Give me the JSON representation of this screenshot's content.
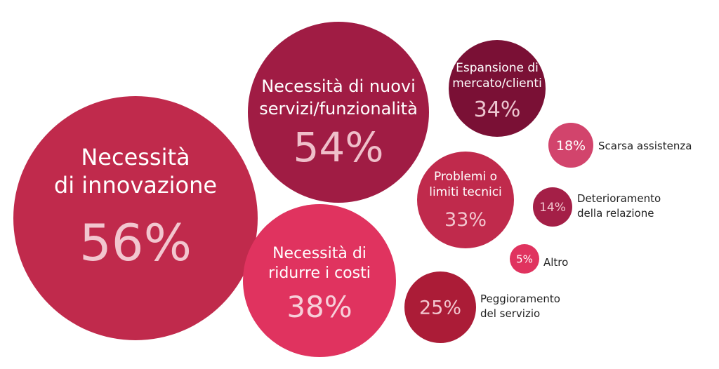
{
  "chart_data": {
    "type": "bubble",
    "title": "",
    "series": [
      {
        "items": [
          {
            "label": [
              "Necessità",
              "di innovazione"
            ],
            "value": 56,
            "display": "56%",
            "color": "#c02a4c",
            "text_color": "#ffffff",
            "value_color": "#f2c6cf"
          },
          {
            "label": [
              "Necessità di nuovi",
              "servizi/funzionalità"
            ],
            "value": 54,
            "display": "54%",
            "color": "#a01c44",
            "text_color": "#ffffff",
            "value_color": "#efbfca"
          },
          {
            "label": [
              "Espansione di",
              "mercato/clienti"
            ],
            "value": 34,
            "display": "34%",
            "color": "#7a1035",
            "text_color": "#ffffff",
            "value_color": "#ecc5cf"
          },
          {
            "label": [
              "Necessità di",
              "ridurre i costi"
            ],
            "value": 38,
            "display": "38%",
            "color": "#e0335f",
            "text_color": "#ffffff",
            "value_color": "#f7cfd9"
          },
          {
            "label": [
              "Problemi o",
              "limiti tecnici"
            ],
            "value": 33,
            "display": "33%",
            "color": "#c02a4c",
            "text_color": "#ffffff",
            "value_color": "#f2c6cf"
          },
          {
            "label": [
              "Peggioramento",
              "del servizio"
            ],
            "value": 25,
            "display": "25%",
            "color": "#ab1c37",
            "text_color": "#222222",
            "value_color": "#f2c6cf"
          },
          {
            "label": [
              "Scarsa assistenza"
            ],
            "value": 18,
            "display": "18%",
            "color": "#d2446c",
            "text_color": "#222222",
            "value_color": "#ffffff"
          },
          {
            "label": [
              "Deterioramento",
              "della relazione"
            ],
            "value": 14,
            "display": "14%",
            "color": "#a41f47",
            "text_color": "#222222",
            "value_color": "#f2c6cf"
          },
          {
            "label": [
              "Altro"
            ],
            "value": 5,
            "display": "5%",
            "color": "#e0335f",
            "text_color": "#222222",
            "value_color": "#ffffff"
          }
        ]
      }
    ]
  }
}
